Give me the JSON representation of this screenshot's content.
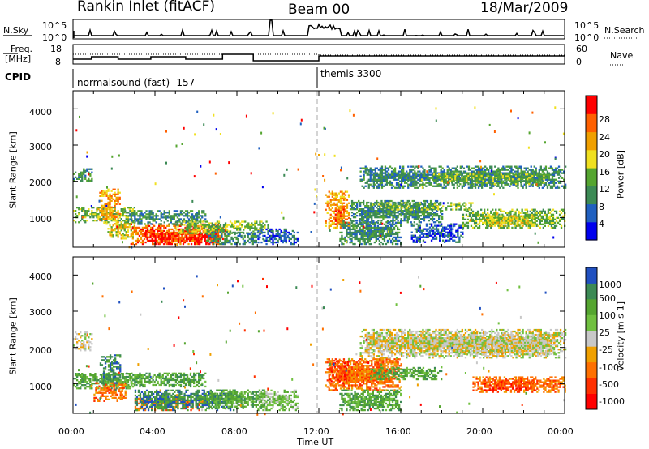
{
  "header": {
    "station": "Rankin Inlet (fitACF)",
    "beam": "Beam 00",
    "date": "18/Mar/2009"
  },
  "nsky_panel": {
    "label": "N.Sky",
    "left_ticks": [
      "10^5",
      "10^0"
    ],
    "right_ticks": [
      "10^5",
      "10^0"
    ],
    "right_label": "N.Search"
  },
  "freq_panel": {
    "label_line1": "Freq.",
    "label_line2": "[MHz]",
    "left_ticks": [
      "18",
      "8"
    ],
    "right_ticks": [
      "60",
      "0"
    ],
    "right_label": "Nave"
  },
  "cpid_panel": {
    "label": "CPID",
    "programs": [
      {
        "name": "normalsound (fast) -157",
        "start_hour": 0
      },
      {
        "name": "themis 3300",
        "start_hour": 12
      }
    ]
  },
  "chart_data": [
    {
      "type": "heatmap",
      "panel": "power",
      "ylabel": "Slant Range [km]",
      "xlim_hours": [
        0,
        24
      ],
      "ylim_km": [
        180,
        4500
      ],
      "y_ticks": [
        1000,
        2000,
        3000,
        4000
      ],
      "colorbar": {
        "label": "Power [dB]",
        "ticks": [
          4,
          8,
          12,
          16,
          20,
          24,
          28
        ],
        "colors": [
          "#0000ee",
          "#2060c0",
          "#3c8a55",
          "#55a530",
          "#f0e020",
          "#f0a000",
          "#ff6000",
          "#ff0000"
        ]
      },
      "regions": [
        {
          "t0": 0.0,
          "t1": 0.9,
          "r0": 2000,
          "r1": 2350,
          "level": 2
        },
        {
          "t0": 0.0,
          "t1": 3.0,
          "r0": 850,
          "r1": 1300,
          "level": 3
        },
        {
          "t0": 1.2,
          "t1": 2.3,
          "r0": 900,
          "r1": 1800,
          "level": 5
        },
        {
          "t0": 1.6,
          "t1": 3.0,
          "r0": 400,
          "r1": 900,
          "level": 4
        },
        {
          "t0": 2.8,
          "t1": 7.5,
          "r0": 250,
          "r1": 800,
          "level": 6
        },
        {
          "t0": 3.5,
          "t1": 7.0,
          "r0": 250,
          "r1": 550,
          "level": 7
        },
        {
          "t0": 2.5,
          "t1": 6.5,
          "r0": 800,
          "r1": 1200,
          "level": 2
        },
        {
          "t0": 5.0,
          "t1": 9.5,
          "r0": 550,
          "r1": 900,
          "level": 3
        },
        {
          "t0": 6.5,
          "t1": 9.0,
          "r0": 250,
          "r1": 600,
          "level": 2
        },
        {
          "t0": 9.0,
          "t1": 11.0,
          "r0": 250,
          "r1": 700,
          "level": 1
        },
        {
          "t0": 12.3,
          "t1": 13.5,
          "r0": 700,
          "r1": 1700,
          "level": 5
        },
        {
          "t0": 12.7,
          "t1": 13.4,
          "r0": 750,
          "r1": 1300,
          "level": 6
        },
        {
          "t0": 13.0,
          "t1": 16.0,
          "r0": 250,
          "r1": 900,
          "level": 2
        },
        {
          "t0": 13.5,
          "t1": 18.0,
          "r0": 850,
          "r1": 1450,
          "level": 2
        },
        {
          "t0": 14.5,
          "t1": 19.5,
          "r0": 1200,
          "r1": 1400,
          "level": 3
        },
        {
          "t0": 16.5,
          "t1": 19.0,
          "r0": 300,
          "r1": 800,
          "level": 1
        },
        {
          "t0": 19.0,
          "t1": 24.0,
          "r0": 700,
          "r1": 1200,
          "level": 3
        },
        {
          "t0": 20.0,
          "t1": 22.5,
          "r0": 750,
          "r1": 1050,
          "level": 4
        },
        {
          "t0": 14.0,
          "t1": 24.0,
          "r0": 1800,
          "r1": 2400,
          "level": 2
        },
        {
          "t0": 17.5,
          "t1": 23.0,
          "r0": 1900,
          "r1": 2200,
          "level": 3
        }
      ]
    },
    {
      "type": "heatmap",
      "panel": "velocity",
      "ylabel": "Slant Range [km]",
      "xlabel": "Time UT",
      "xlim_hours": [
        0,
        24
      ],
      "ylim_km": [
        180,
        4500
      ],
      "y_ticks": [
        1000,
        2000,
        3000,
        4000
      ],
      "x_ticks": [
        "00:00",
        "04:00",
        "08:00",
        "12:00",
        "16:00",
        "20:00",
        "00:00"
      ],
      "colorbar": {
        "label": "Velocity [m s-1]",
        "ticks": [
          "1000",
          "500",
          "100",
          "25",
          "-25",
          "-100",
          "-500",
          "-1000"
        ],
        "colors": [
          "#2050c0",
          "#3c8a55",
          "#55a530",
          "#70c040",
          "#c8c8c8",
          "#f0a000",
          "#ff7000",
          "#ff3000",
          "#ff0000"
        ]
      },
      "regions": [
        {
          "t0": 0.0,
          "t1": 0.9,
          "r0": 1900,
          "r1": 2400,
          "level": 4
        },
        {
          "t0": 0.0,
          "t1": 3.0,
          "r0": 850,
          "r1": 1300,
          "level": 2
        },
        {
          "t0": 1.0,
          "t1": 2.6,
          "r0": 500,
          "r1": 1000,
          "level": 6
        },
        {
          "t0": 1.3,
          "t1": 2.3,
          "r0": 1000,
          "r1": 1800,
          "level": 1
        },
        {
          "t0": 2.5,
          "t1": 6.5,
          "r0": 900,
          "r1": 1300,
          "level": 2
        },
        {
          "t0": 3.0,
          "t1": 6.5,
          "r0": 250,
          "r1": 600,
          "level": 6
        },
        {
          "t0": 3.0,
          "t1": 8.0,
          "r0": 250,
          "r1": 800,
          "level": 1
        },
        {
          "t0": 6.5,
          "t1": 9.5,
          "r0": 300,
          "r1": 800,
          "level": 2
        },
        {
          "t0": 9.0,
          "t1": 11.0,
          "r0": 250,
          "r1": 800,
          "level": 3
        },
        {
          "t0": 12.3,
          "t1": 16.0,
          "r0": 800,
          "r1": 1700,
          "level": 6
        },
        {
          "t0": 12.5,
          "t1": 13.5,
          "r0": 1000,
          "r1": 1600,
          "level": 7
        },
        {
          "t0": 13.0,
          "t1": 16.0,
          "r0": 250,
          "r1": 800,
          "level": 2
        },
        {
          "t0": 14.5,
          "t1": 18.0,
          "r0": 1100,
          "r1": 1450,
          "level": 2
        },
        {
          "t0": 19.5,
          "t1": 24.0,
          "r0": 750,
          "r1": 1200,
          "level": 6
        },
        {
          "t0": 20.0,
          "t1": 22.5,
          "r0": 800,
          "r1": 1100,
          "level": 7
        },
        {
          "t0": 14.0,
          "t1": 24.0,
          "r0": 1700,
          "r1": 2500,
          "level": 4
        },
        {
          "t0": 18.5,
          "t1": 23.5,
          "r0": 1800,
          "r1": 2300,
          "level": 4
        }
      ]
    }
  ]
}
